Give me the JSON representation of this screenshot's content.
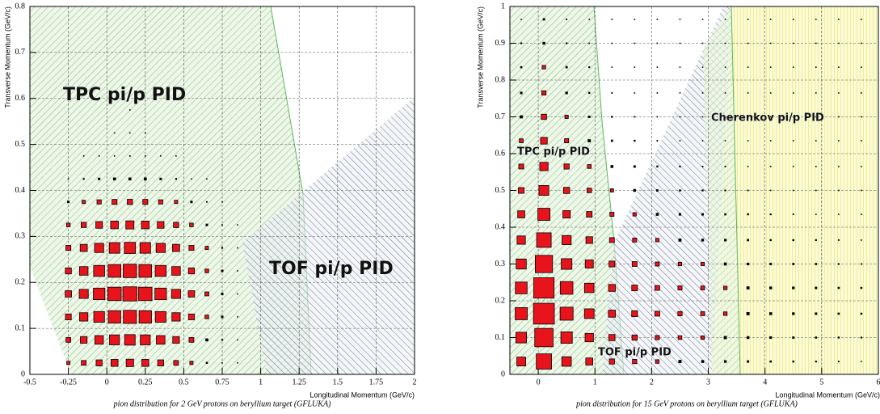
{
  "chart_data": [
    {
      "type": "box2d",
      "x_label": "Longitudinal Momentum (GeV/c)",
      "y_label": "Transverse Momentum (GeV/c)",
      "caption": "pion distribution for 2 GeV protons on beryllium target (GFLUKA)",
      "annotations": [
        "TPC pi/p PID",
        "TOF pi/p PID"
      ],
      "xlim": [
        -0.5,
        2
      ],
      "ylim": [
        0,
        0.8
      ],
      "xticks": [
        -0.5,
        -0.25,
        0,
        0.25,
        0.5,
        0.75,
        1,
        1.25,
        1.5,
        1.75,
        2
      ],
      "yticks": [
        0,
        0.1,
        0.2,
        0.3,
        0.4,
        0.5,
        0.6,
        0.7,
        0.8
      ],
      "grid": true,
      "color": "#e8141c",
      "xbins": [
        -0.3,
        -0.2,
        -0.1,
        0,
        0.1,
        0.2,
        0.3,
        0.4,
        0.5,
        0.6,
        0.7,
        0.8,
        0.9
      ],
      "ybins": [
        0,
        0.05,
        0.1,
        0.15,
        0.2,
        0.25,
        0.3,
        0.35,
        0.4,
        0.45,
        0.5,
        0.55,
        0.6
      ],
      "z": [
        [
          4,
          9,
          15,
          21,
          24,
          21,
          15,
          9,
          4,
          1.4,
          0.5,
          0.1
        ],
        [
          9,
          19,
          33,
          46,
          52,
          46,
          33,
          19,
          9,
          3,
          1,
          0.2
        ],
        [
          14,
          31,
          54,
          75,
          84,
          75,
          54,
          31,
          14,
          5,
          2,
          0.3
        ],
        [
          17,
          37,
          64,
          89,
          100,
          89,
          64,
          37,
          17,
          6,
          2,
          0.4
        ],
        [
          15,
          33,
          57,
          79,
          89,
          79,
          57,
          33,
          15,
          5,
          2,
          0.4
        ],
        [
          10,
          22,
          38,
          53,
          59,
          53,
          38,
          22,
          10,
          4,
          1,
          0.2
        ],
        [
          5,
          11,
          19,
          26,
          29,
          26,
          19,
          11,
          5,
          2,
          0.6,
          0.1
        ],
        [
          2,
          4,
          7,
          10,
          11,
          10,
          7,
          4,
          2,
          0.7,
          0.2,
          0
        ],
        [
          0.5,
          1,
          2,
          3,
          3,
          3,
          2,
          1,
          0.5,
          0.2,
          0,
          0
        ],
        [
          0,
          0.2,
          0.4,
          0.5,
          0.6,
          0.5,
          0.4,
          0.2,
          0,
          0,
          0,
          0
        ],
        [
          0,
          0,
          0,
          0.1,
          0.1,
          0.1,
          0,
          0,
          0,
          0,
          0,
          0
        ],
        [
          0,
          0,
          0,
          0,
          0.1,
          0,
          0,
          0,
          0,
          0,
          0,
          0
        ]
      ]
    },
    {
      "type": "box2d",
      "x_label": "Longitudinal Momentum (GeV/c)",
      "y_label": "Transverse Momentum (GeV/c)",
      "caption": "pion distribution for 15 GeV protons on beryllium target (GFLUKA)",
      "annotations": [
        "Cherenkov pi/p PID",
        "TPC pi/p PID",
        "TOF pi/p PID"
      ],
      "xlim": [
        -0.5,
        6
      ],
      "ylim": [
        0,
        1
      ],
      "xticks": [
        0,
        1,
        2,
        3,
        4,
        5,
        6
      ],
      "yticks": [
        0,
        0.1,
        0.2,
        0.3,
        0.4,
        0.5,
        0.6,
        0.7,
        0.8,
        0.9,
        1
      ],
      "grid": true,
      "color": "#e8141c",
      "xbins": [
        -0.5,
        -0.1,
        0.3,
        0.7,
        1.1,
        1.5,
        1.9,
        2.3,
        2.7,
        3.1,
        3.5,
        3.9,
        4.3,
        4.7,
        5.1,
        5.5,
        5.9
      ],
      "ybins": [
        0,
        0.07,
        0.13,
        0.2,
        0.27,
        0.33,
        0.4,
        0.47,
        0.53,
        0.6,
        0.67,
        0.73,
        0.8,
        0.87,
        0.93,
        1
      ],
      "z": [
        [
          15,
          50,
          17.5,
          9,
          4.5,
          3,
          2,
          1.5,
          1.2,
          1,
          0.8,
          0.6,
          0.5,
          0.4,
          0.3,
          0.2
        ],
        [
          24,
          80,
          28,
          14,
          7,
          5,
          3,
          2.4,
          2,
          1.6,
          1.2,
          1,
          0.8,
          0.6,
          0.5,
          0.4
        ],
        [
          30,
          100,
          35,
          18,
          9,
          6,
          4,
          3,
          2.5,
          2,
          1.5,
          1.2,
          1,
          0.8,
          0.6,
          0.5
        ],
        [
          28,
          95,
          33,
          17,
          8.5,
          5.7,
          3.8,
          2.8,
          2.4,
          1.9,
          1.4,
          1.1,
          1,
          0.8,
          0.6,
          0.5
        ],
        [
          21,
          70,
          24,
          13,
          6.3,
          4.2,
          2.8,
          2.1,
          1.8,
          1.4,
          1,
          0.8,
          0.7,
          0.6,
          0.4,
          0.3
        ],
        [
          13,
          45,
          16,
          8,
          4,
          2.7,
          1.8,
          1.4,
          1.1,
          0.9,
          0.7,
          0.5,
          0.5,
          0.4,
          0.3,
          0.2
        ],
        [
          9,
          30,
          10,
          5.4,
          2.7,
          1.8,
          1.2,
          0.9,
          0.8,
          0.6,
          0.5,
          0.4,
          0.3,
          0.2,
          0.2,
          0.2
        ],
        [
          6,
          20,
          7,
          3.6,
          1.8,
          1.2,
          0.8,
          0.6,
          0.5,
          0.4,
          0.3,
          0.2,
          0.2,
          0.2,
          0.1,
          0.1
        ],
        [
          4,
          13,
          4.5,
          2.3,
          1.2,
          0.8,
          0.5,
          0.4,
          0.3,
          0.3,
          0.2,
          0.2,
          0.1,
          0.1,
          0.1,
          0.1
        ],
        [
          2.4,
          8,
          2.8,
          1.4,
          0.7,
          0.5,
          0.3,
          0.2,
          0.2,
          0.2,
          0.1,
          0.1,
          0.1,
          0.1,
          0.05,
          0.04
        ],
        [
          1.5,
          5,
          1.8,
          0.9,
          0.5,
          0.3,
          0.2,
          0.15,
          0.1,
          0.1,
          0.08,
          0.06,
          0.05,
          0.04,
          0.03,
          0.03
        ],
        [
          0.9,
          3,
          1,
          0.5,
          0.3,
          0.2,
          0.1,
          0.1,
          0.08,
          0.06,
          0.05,
          0.04,
          0.03,
          0.02,
          0.02,
          0.02
        ],
        [
          0.6,
          2,
          0.7,
          0.4,
          0.2,
          0.1,
          0.08,
          0.06,
          0.05,
          0.04,
          0.03,
          0.02,
          0.02,
          0.02,
          0.01,
          0.01
        ],
        [
          0.4,
          1.2,
          0.4,
          0.2,
          0.1,
          0.07,
          0.05,
          0.04,
          0.03,
          0.02,
          0.02,
          0.01,
          0.01,
          0.01,
          0.01,
          0.01
        ],
        [
          0.2,
          0.8,
          0.3,
          0.1,
          0.07,
          0.05,
          0.03,
          0.02,
          0.02,
          0.02,
          0.01,
          0.01,
          0.01,
          0.01,
          0.01,
          0.01
        ]
      ]
    }
  ]
}
